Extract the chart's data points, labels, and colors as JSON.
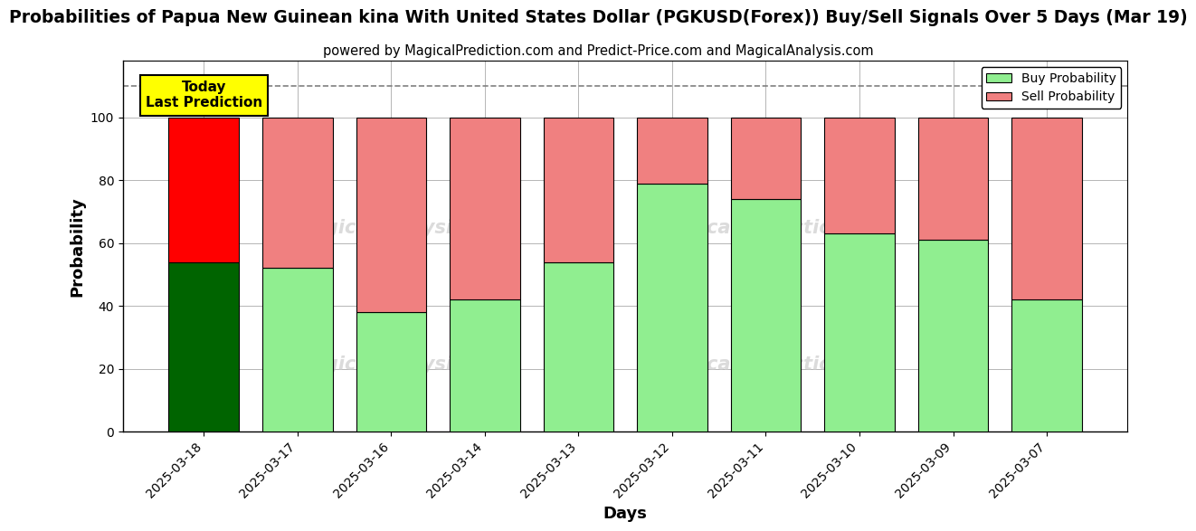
{
  "title": "Probabilities of Papua New Guinean kina With United States Dollar (PGKUSD(Forex)) Buy/Sell Signals Over 5 Days (Mar 19)",
  "subtitle": "powered by MagicalPrediction.com and Predict-Price.com and MagicalAnalysis.com",
  "xlabel": "Days",
  "ylabel": "Probability",
  "dates": [
    "2025-03-18",
    "2025-03-17",
    "2025-03-16",
    "2025-03-14",
    "2025-03-13",
    "2025-03-12",
    "2025-03-11",
    "2025-03-10",
    "2025-03-09",
    "2025-03-07"
  ],
  "buy_values": [
    54,
    52,
    38,
    42,
    54,
    79,
    74,
    63,
    61,
    42
  ],
  "sell_values": [
    46,
    48,
    62,
    58,
    46,
    21,
    26,
    37,
    39,
    58
  ],
  "today_buy_color": "#006400",
  "today_sell_color": "#FF0000",
  "buy_color": "#90EE90",
  "sell_color": "#F08080",
  "today_annotation_bg": "#FFFF00",
  "today_annotation_text": "Today\nLast Prediction",
  "dashed_line_y": 110,
  "ylim": [
    0,
    118
  ],
  "yticks": [
    0,
    20,
    40,
    60,
    80,
    100
  ],
  "legend_buy_label": "Buy Probability",
  "legend_sell_label": "Sell Probability",
  "background_color": "#ffffff",
  "grid_color": "#aaaaaa",
  "title_fontsize": 13.5,
  "subtitle_fontsize": 10.5,
  "axis_label_fontsize": 13,
  "tick_fontsize": 10,
  "bar_width": 0.75
}
